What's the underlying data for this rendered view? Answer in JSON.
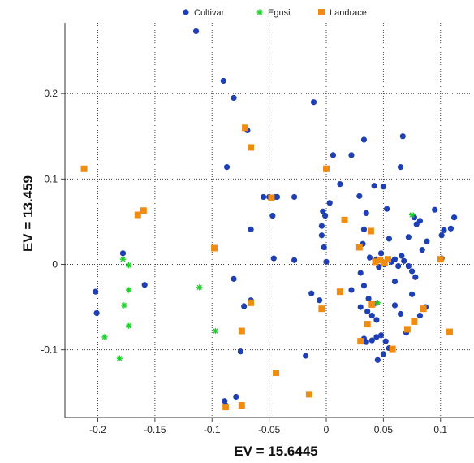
{
  "chart_data": {
    "type": "scatter",
    "xlabel": "EV = 15.6445",
    "ylabel": "EV = 13.459",
    "xlim": [
      -0.22,
      0.11
    ],
    "ylim": [
      -0.175,
      0.28
    ],
    "x_ticks": [
      -0.2,
      -0.15,
      -0.1,
      -0.05,
      0,
      0.05,
      0.1
    ],
    "x_tick_labels": [
      "-0.2",
      "-0.15",
      "-0.1",
      "-0.05",
      "0",
      "0.05",
      "0.1"
    ],
    "y_ticks": [
      -0.1,
      0,
      0.1,
      0.2
    ],
    "y_tick_labels": [
      "-0.1",
      "0",
      "0.1",
      "0.2"
    ],
    "grid": true,
    "legend_position": "top-center",
    "series": [
      {
        "name": "Cultivar",
        "color": "#1f3fb4",
        "marker": "circle",
        "points": [
          [
            -0.114,
            0.273
          ],
          [
            -0.09,
            0.215
          ],
          [
            -0.081,
            0.195
          ],
          [
            -0.087,
            0.114
          ],
          [
            -0.069,
            0.157
          ],
          [
            -0.066,
            0.137
          ],
          [
            -0.043,
            0.079
          ],
          [
            -0.045,
            0.079
          ],
          [
            -0.05,
            0.079
          ],
          [
            -0.055,
            0.079
          ],
          [
            -0.066,
            0.041
          ],
          [
            -0.047,
            0.057
          ],
          [
            -0.046,
            0.007
          ],
          [
            -0.028,
            0.005
          ],
          [
            -0.028,
            0.079
          ],
          [
            -0.011,
            0.19
          ],
          [
            -0.178,
            0.013
          ],
          [
            -0.202,
            -0.032
          ],
          [
            -0.201,
            -0.057
          ],
          [
            -0.159,
            -0.024
          ],
          [
            -0.081,
            -0.017
          ],
          [
            -0.072,
            -0.049
          ],
          [
            -0.066,
            -0.042
          ],
          [
            -0.075,
            -0.102
          ],
          [
            -0.018,
            -0.107
          ],
          [
            -0.089,
            -0.16
          ],
          [
            -0.079,
            -0.155
          ],
          [
            -0.088,
            -0.165
          ],
          [
            -0.013,
            -0.034
          ],
          [
            -0.006,
            -0.042
          ],
          [
            -0.004,
            0.045
          ],
          [
            -0.003,
            0.062
          ],
          [
            -0.001,
            0.057
          ],
          [
            -0.004,
            0.034
          ],
          [
            -0.002,
            0.02
          ],
          [
            0.0,
            0.003
          ],
          [
            0.003,
            0.072
          ],
          [
            0.006,
            0.128
          ],
          [
            0.012,
            0.094
          ],
          [
            0.022,
            0.128
          ],
          [
            0.033,
            0.146
          ],
          [
            0.029,
            0.08
          ],
          [
            0.035,
            0.06
          ],
          [
            0.033,
            0.041
          ],
          [
            0.032,
            0.024
          ],
          [
            0.038,
            0.008
          ],
          [
            0.042,
            0.092
          ],
          [
            0.044,
            0.006
          ],
          [
            0.046,
            -0.003
          ],
          [
            0.048,
            0.013
          ],
          [
            0.051,
            0.0
          ],
          [
            0.053,
            0.065
          ],
          [
            0.05,
            0.091
          ],
          [
            0.055,
            0.03
          ],
          [
            0.057,
            0.003
          ],
          [
            0.06,
            0.006
          ],
          [
            0.063,
            -0.002
          ],
          [
            0.067,
            0.15
          ],
          [
            0.065,
            0.114
          ],
          [
            0.066,
            0.01
          ],
          [
            0.072,
            0.032
          ],
          [
            0.077,
            0.055
          ],
          [
            0.079,
            0.047
          ],
          [
            0.082,
            0.051
          ],
          [
            0.084,
            0.017
          ],
          [
            0.088,
            0.027
          ],
          [
            0.095,
            0.064
          ],
          [
            0.103,
            0.04
          ],
          [
            0.101,
            0.034
          ],
          [
            0.109,
            0.042
          ],
          [
            0.101,
            0.007
          ],
          [
            0.112,
            0.055
          ],
          [
            0.068,
            0.004
          ],
          [
            0.072,
            -0.002
          ],
          [
            0.075,
            -0.008
          ],
          [
            0.078,
            -0.015
          ],
          [
            0.03,
            -0.01
          ],
          [
            0.033,
            -0.025
          ],
          [
            0.037,
            -0.04
          ],
          [
            0.042,
            -0.046
          ],
          [
            0.036,
            -0.055
          ],
          [
            0.04,
            -0.06
          ],
          [
            0.033,
            -0.087
          ],
          [
            0.035,
            -0.091
          ],
          [
            0.04,
            -0.089
          ],
          [
            0.044,
            -0.085
          ],
          [
            0.048,
            -0.083
          ],
          [
            0.052,
            -0.09
          ],
          [
            0.06,
            -0.048
          ],
          [
            0.065,
            -0.058
          ],
          [
            0.075,
            -0.035
          ],
          [
            0.082,
            -0.06
          ],
          [
            0.087,
            -0.05
          ],
          [
            0.07,
            -0.08
          ],
          [
            0.05,
            -0.105
          ],
          [
            0.045,
            -0.112
          ],
          [
            0.055,
            -0.098
          ],
          [
            0.03,
            -0.05
          ],
          [
            0.06,
            -0.02
          ],
          [
            0.044,
            -0.065
          ],
          [
            0.022,
            -0.03
          ]
        ]
      },
      {
        "name": "Egusi",
        "color": "#1ed02a",
        "marker": "star",
        "points": [
          [
            -0.178,
            0.006
          ],
          [
            -0.173,
            -0.001
          ],
          [
            -0.173,
            -0.03
          ],
          [
            -0.177,
            -0.048
          ],
          [
            -0.173,
            -0.072
          ],
          [
            -0.194,
            -0.085
          ],
          [
            -0.181,
            -0.11
          ],
          [
            -0.111,
            -0.027
          ],
          [
            -0.097,
            -0.078
          ],
          [
            0.075,
            0.058
          ],
          [
            0.045,
            -0.045
          ]
        ]
      },
      {
        "name": "Landrace",
        "color": "#f08c12",
        "marker": "square",
        "points": [
          [
            -0.212,
            0.112
          ],
          [
            -0.165,
            0.058
          ],
          [
            -0.16,
            0.063
          ],
          [
            -0.098,
            0.019
          ],
          [
            -0.071,
            0.16
          ],
          [
            -0.066,
            0.137
          ],
          [
            -0.066,
            -0.045
          ],
          [
            -0.074,
            -0.078
          ],
          [
            -0.048,
            0.078
          ],
          [
            -0.088,
            -0.167
          ],
          [
            -0.074,
            -0.165
          ],
          [
            -0.044,
            -0.127
          ],
          [
            -0.015,
            -0.152
          ],
          [
            -0.004,
            -0.052
          ],
          [
            0.0,
            0.112
          ],
          [
            0.012,
            -0.032
          ],
          [
            0.016,
            0.052
          ],
          [
            0.029,
            0.02
          ],
          [
            0.036,
            -0.07
          ],
          [
            0.039,
            0.039
          ],
          [
            0.04,
            -0.047
          ],
          [
            0.043,
            0.003
          ],
          [
            0.047,
            0.005
          ],
          [
            0.051,
            0.002
          ],
          [
            0.054,
            0.006
          ],
          [
            0.058,
            -0.099
          ],
          [
            0.071,
            -0.076
          ],
          [
            0.077,
            -0.067
          ],
          [
            0.085,
            -0.052
          ],
          [
            0.1,
            0.006
          ],
          [
            0.108,
            -0.079
          ],
          [
            0.03,
            -0.09
          ]
        ]
      }
    ]
  }
}
